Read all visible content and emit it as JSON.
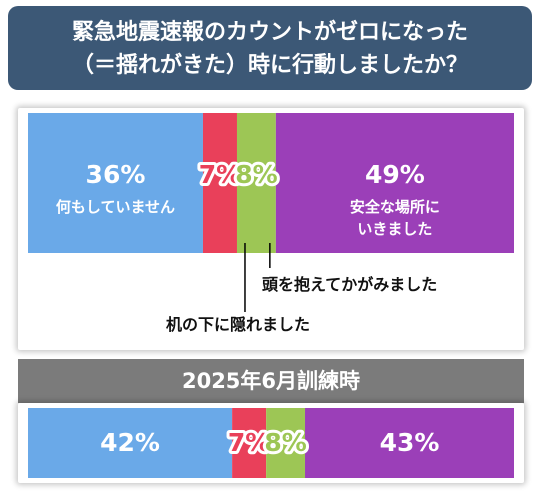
{
  "title": {
    "line1": "緊急地震速報のカウントがゼロになった",
    "line2": "（＝揺れがきた）時に行動しましたか？"
  },
  "colors": {
    "none": "#6aa9e8",
    "under_desk": "#e9405a",
    "hold_head": "#9dc655",
    "safe_place": "#9b3fb8",
    "banner": "#3c5876",
    "section_header": "#7b7b7b"
  },
  "chart_data": [
    {
      "type": "bar",
      "orientation": "horizontal-stacked",
      "title": "",
      "categories": [
        "何もしていません",
        "机の下に隠れました",
        "頭を抱えてかがみました",
        "安全な場所にいきました"
      ],
      "values": [
        36,
        7,
        8,
        49
      ],
      "labels": [
        "36%",
        "7%",
        "8%",
        "49%"
      ],
      "sublabels": [
        [
          "何もしていません"
        ],
        [],
        [],
        [
          "安全な場所に",
          "いきました"
        ]
      ],
      "callouts": [
        "頭を抱えてかがみました",
        "机の下に隠れました"
      ],
      "colors": [
        "#6aa9e8",
        "#e9405a",
        "#9dc655",
        "#9b3fb8"
      ]
    },
    {
      "type": "bar",
      "orientation": "horizontal-stacked",
      "title": "2025年6月訓練時",
      "categories": [
        "何もしていません",
        "机の下に隠れました",
        "頭を抱えてかがみました",
        "安全な場所にいきました"
      ],
      "values": [
        42,
        7,
        8,
        43
      ],
      "labels": [
        "42%",
        "7%",
        "8%",
        "43%"
      ],
      "colors": [
        "#6aa9e8",
        "#e9405a",
        "#9dc655",
        "#9b3fb8"
      ]
    }
  ]
}
